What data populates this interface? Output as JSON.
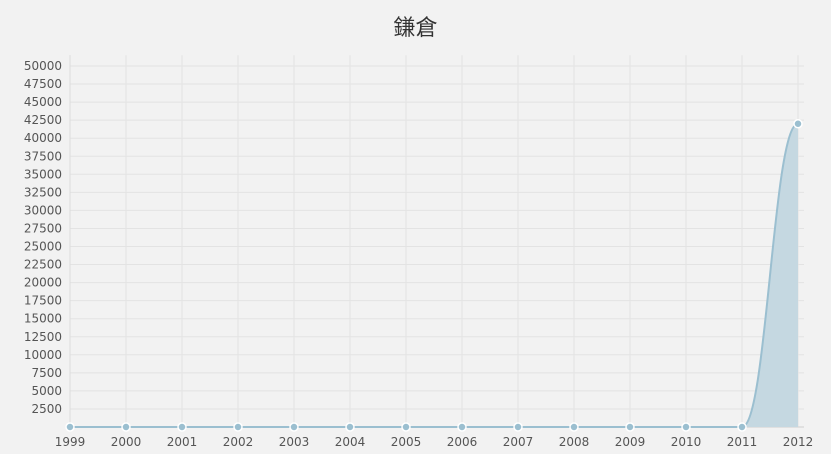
{
  "chart_data": {
    "type": "area",
    "title": "鎌倉",
    "xlabel": "",
    "ylabel": "",
    "x": [
      "1999",
      "2000",
      "2001",
      "2002",
      "2003",
      "2004",
      "2005",
      "2006",
      "2007",
      "2008",
      "2009",
      "2010",
      "2011",
      "2012"
    ],
    "series": [
      {
        "values": [
          0,
          0,
          0,
          0,
          0,
          0,
          0,
          0,
          0,
          0,
          0,
          0,
          0,
          42000
        ]
      }
    ],
    "ylim": [
      0,
      51500
    ],
    "yticks": [
      2500,
      5000,
      7500,
      10000,
      12500,
      15000,
      17500,
      20000,
      22500,
      25000,
      27500,
      30000,
      32500,
      35000,
      37500,
      40000,
      42500,
      45000,
      47500,
      50000
    ],
    "grid": true,
    "colors": {
      "line": "#9bbfd0",
      "fill": "#c5d8e1",
      "point": "#9bbfd0"
    }
  }
}
